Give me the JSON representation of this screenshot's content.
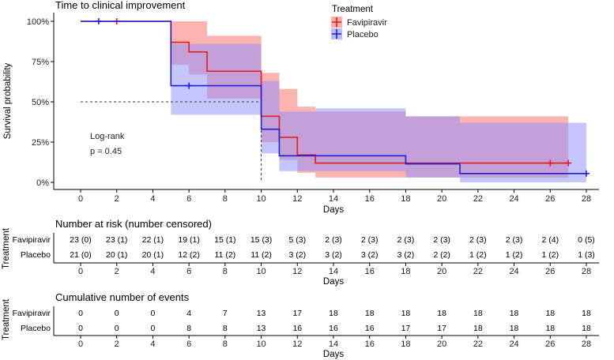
{
  "chart_data": {
    "type": "kaplan-meier",
    "title": "Time to clinical improvement",
    "xlabel": "Days",
    "ylabel": "Survival probability",
    "xlim": [
      0,
      28
    ],
    "ylim": [
      0,
      1
    ],
    "x_ticks": [
      0,
      2,
      4,
      6,
      8,
      10,
      12,
      14,
      16,
      18,
      20,
      22,
      24,
      26,
      28
    ],
    "x_tick_labels": [
      "0",
      "2",
      "4",
      "6",
      "8",
      "10",
      "12",
      "14",
      "16",
      "18",
      "20",
      "22",
      "24",
      "26",
      "28"
    ],
    "y_ticks": [
      0,
      0.25,
      0.5,
      0.75,
      1.0
    ],
    "y_tick_labels": [
      "0%",
      "25%",
      "50%",
      "75%",
      "100%"
    ],
    "legend": {
      "title": "Treatment",
      "position": "top-right",
      "entries": [
        "Favipiravir",
        "Placebo"
      ]
    },
    "series": [
      {
        "name": "Favipiravir",
        "color": "#e41a1c",
        "band_color": "#f8766d",
        "steps": [
          [
            0,
            1.0
          ],
          [
            5,
            0.87
          ],
          [
            6,
            0.81
          ],
          [
            7,
            0.69
          ],
          [
            10,
            0.41
          ],
          [
            11,
            0.28
          ],
          [
            12,
            0.17
          ],
          [
            13,
            0.12
          ]
        ],
        "upper": [
          [
            0,
            1.0
          ],
          [
            5,
            1.0
          ],
          [
            7,
            0.91
          ],
          [
            10,
            0.68
          ],
          [
            11,
            0.58
          ],
          [
            12,
            0.47
          ],
          [
            13,
            0.44
          ],
          [
            18,
            0.41
          ],
          [
            27,
            0.41
          ]
        ],
        "lower": [
          [
            0,
            1.0
          ],
          [
            5,
            0.73
          ],
          [
            6,
            0.67
          ],
          [
            7,
            0.52
          ],
          [
            10,
            0.25
          ],
          [
            11,
            0.14
          ],
          [
            12,
            0.06
          ],
          [
            13,
            0.03
          ],
          [
            27,
            0.03
          ]
        ],
        "end": 27,
        "censored": [
          [
            2,
            1.0
          ],
          [
            26,
            0.12
          ],
          [
            27,
            0.12
          ]
        ]
      },
      {
        "name": "Placebo",
        "color": "#1f1fd8",
        "band_color": "#8b8bff",
        "steps": [
          [
            0,
            1.0
          ],
          [
            5,
            0.6
          ],
          [
            10,
            0.33
          ],
          [
            11,
            0.165
          ],
          [
            18,
            0.115
          ],
          [
            21,
            0.055
          ]
        ],
        "upper": [
          [
            0,
            1.0
          ],
          [
            5,
            0.86
          ],
          [
            10,
            0.63
          ],
          [
            11,
            0.44
          ],
          [
            13,
            0.46
          ],
          [
            18,
            0.41
          ],
          [
            21,
            0.37
          ],
          [
            28,
            0.37
          ]
        ],
        "lower": [
          [
            0,
            1.0
          ],
          [
            5,
            0.42
          ],
          [
            10,
            0.18
          ],
          [
            11,
            0.07
          ],
          [
            18,
            0.03
          ],
          [
            21,
            0.0
          ],
          [
            28,
            0.0
          ]
        ],
        "end": 28,
        "censored": [
          [
            1,
            1.0
          ],
          [
            6,
            0.6
          ],
          [
            28,
            0.055
          ]
        ]
      }
    ],
    "median_line": {
      "y": 0.5,
      "x": 10
    },
    "annotation": {
      "line1": "Log-rank",
      "line2": "p = 0.45"
    },
    "risk_table": {
      "title": "Number at risk (number censored)",
      "ylabel": "Treatment",
      "xlabel": "Days",
      "rows": [
        {
          "name": "Favipiravir",
          "values": [
            "23 (0)",
            "23 (1)",
            "22 (1)",
            "19 (1)",
            "15 (1)",
            "15 (3)",
            "5 (3)",
            "2 (3)",
            "2 (3)",
            "2 (3)",
            "2 (3)",
            "2 (3)",
            "2 (3)",
            "2 (4)",
            "0 (5)"
          ]
        },
        {
          "name": "Placebo",
          "values": [
            "21 (0)",
            "20 (1)",
            "20 (1)",
            "12 (2)",
            "11 (2)",
            "11 (2)",
            "3 (2)",
            "3 (2)",
            "3 (2)",
            "3 (2)",
            "2 (2)",
            "1 (2)",
            "1 (2)",
            "1 (2)",
            "1 (3)"
          ]
        }
      ]
    },
    "events_table": {
      "title": "Cumulative number of events",
      "ylabel": "Treatment",
      "xlabel": "Days",
      "rows": [
        {
          "name": "Favipiravir",
          "values": [
            "0",
            "0",
            "0",
            "4",
            "7",
            "13",
            "17",
            "18",
            "18",
            "18",
            "18",
            "18",
            "18",
            "18",
            "18"
          ]
        },
        {
          "name": "Placebo",
          "values": [
            "0",
            "0",
            "0",
            "8",
            "8",
            "13",
            "16",
            "16",
            "16",
            "17",
            "17",
            "18",
            "18",
            "18",
            "18"
          ]
        }
      ]
    }
  }
}
